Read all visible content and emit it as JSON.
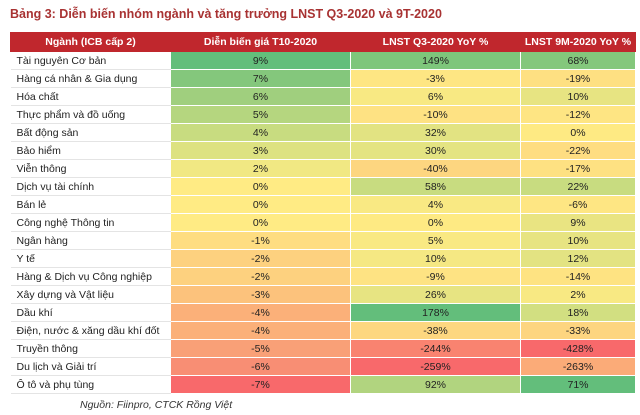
{
  "title": "Bảng 3: Diễn biến nhóm ngành và tăng trưởng LNST Q3-2020 và 9T-2020",
  "table": {
    "header": [
      "Ngành (ICB cấp 2)",
      "Diễn biến giá T10-2020",
      "LNST Q3-2020 YoY %",
      "LNST 9M-2020 YoY %"
    ],
    "rows": [
      [
        "Tài nguyên Cơ bản",
        "9%",
        "149%",
        "68%"
      ],
      [
        "Hàng cá nhân & Gia dụng",
        "7%",
        "-3%",
        "-19%"
      ],
      [
        "Hóa chất",
        "6%",
        "6%",
        "10%"
      ],
      [
        "Thực phẩm và đồ uống",
        "5%",
        "-10%",
        "-12%"
      ],
      [
        "Bất động sản",
        "4%",
        "32%",
        "0%"
      ],
      [
        "Bảo hiểm",
        "3%",
        "30%",
        "-22%"
      ],
      [
        "Viễn thông",
        "2%",
        "-40%",
        "-17%"
      ],
      [
        "Dịch vụ tài chính",
        "0%",
        "58%",
        "22%"
      ],
      [
        "Bán lẻ",
        "0%",
        "4%",
        "-6%"
      ],
      [
        "Công nghệ Thông tin",
        "0%",
        "0%",
        "9%"
      ],
      [
        "Ngân hàng",
        "-1%",
        "5%",
        "10%"
      ],
      [
        "Y tế",
        "-2%",
        "10%",
        "12%"
      ],
      [
        "Hàng & Dịch vụ Công nghiệp",
        "-2%",
        "-9%",
        "-14%"
      ],
      [
        "Xây dựng và Vật liệu",
        "-3%",
        "26%",
        "2%"
      ],
      [
        "Dầu khí",
        "-4%",
        "178%",
        "18%"
      ],
      [
        "Điện, nước & xăng dầu khí đốt",
        "-4%",
        "-38%",
        "-33%"
      ],
      [
        "Truyền thông",
        "-5%",
        "-244%",
        "-428%"
      ],
      [
        "Du lịch và Giải trí",
        "-6%",
        "-259%",
        "-263%"
      ],
      [
        "Ô tô và phụ tùng",
        "-7%",
        "92%",
        "71%"
      ]
    ]
  },
  "source": "Nguồn: Fiinpro, CTCK Rồng Việt"
}
